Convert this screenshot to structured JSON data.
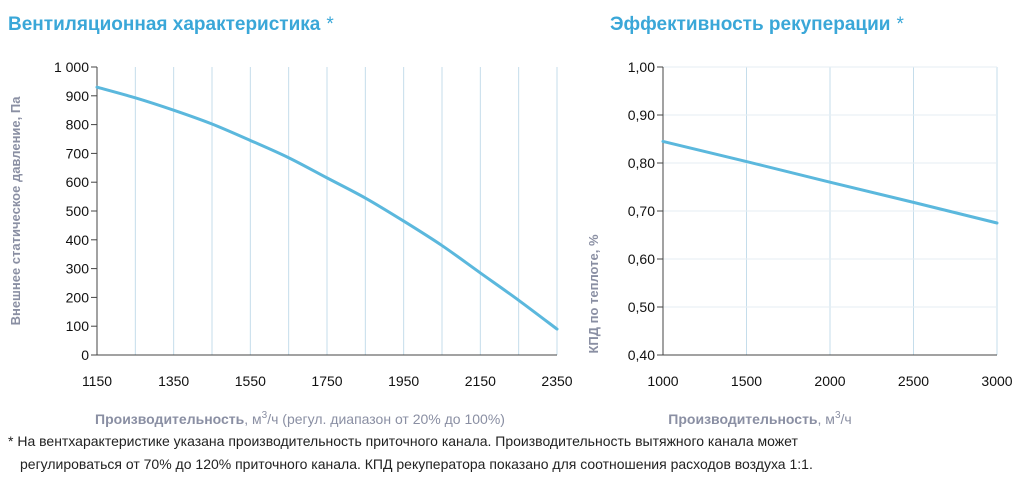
{
  "titles": {
    "ventilation": "Вентиляционная характеристика",
    "recovery": "Эффективность рекуперации",
    "star": "*"
  },
  "colors": {
    "accent": "#3aa7d8",
    "line": "#5bb8dd",
    "grid": "#c5ddeb",
    "axis_label": "#8a8fa3"
  },
  "footnote": {
    "line1": "* На вентхарактеристике указана производительность приточного канала. Производительность вытяжного канала может",
    "line2": "регулироваться от 70% до 120% приточного канала. КПД рекуператора показано для соотношения расходов воздуха 1:1."
  },
  "chart_data": [
    {
      "type": "line",
      "title": "Вентиляционная характеристика",
      "ylabel": "Внешнее статическое давление, Па",
      "xlabel_bold": "Производительность",
      "xlabel_unit": ", м",
      "xlabel_sup": "3",
      "xlabel_unit2": "/ч",
      "xlabel_note": " (регул. диапазон от 20% до 100%)",
      "xlim": [
        1150,
        2350
      ],
      "ylim": [
        0,
        1000
      ],
      "x_ticks": [
        "1150",
        "1350",
        "1550",
        "1750",
        "1950",
        "2150",
        "2350"
      ],
      "y_ticks": [
        "0",
        "100",
        "200",
        "300",
        "400",
        "500",
        "600",
        "700",
        "800",
        "900",
        "1 000"
      ],
      "series": [
        {
          "name": "Вентиляционная характеристика",
          "x": [
            1150,
            1250,
            1350,
            1450,
            1550,
            1650,
            1750,
            1850,
            1950,
            2050,
            2150,
            2250,
            2350
          ],
          "y": [
            930,
            893,
            850,
            802,
            745,
            685,
            615,
            545,
            465,
            380,
            285,
            190,
            90
          ]
        }
      ]
    },
    {
      "type": "line",
      "title": "Эффективность рекуперации",
      "ylabel": "КПД по теплоте, %",
      "xlabel_bold": "Производительность",
      "xlabel_unit": ", м",
      "xlabel_sup": "3",
      "xlabel_unit2": "/ч",
      "xlim": [
        1000,
        3000
      ],
      "ylim": [
        0.4,
        1.0
      ],
      "x_ticks": [
        "1000",
        "1500",
        "2000",
        "2500",
        "3000"
      ],
      "y_ticks": [
        "0,40",
        "0,50",
        "0,60",
        "0,70",
        "0,80",
        "0,90",
        "1,00"
      ],
      "series": [
        {
          "name": "КПД по теплоте",
          "x": [
            1000,
            1500,
            2000,
            2500,
            3000
          ],
          "y": [
            0.845,
            0.803,
            0.76,
            0.718,
            0.675
          ]
        }
      ]
    }
  ]
}
